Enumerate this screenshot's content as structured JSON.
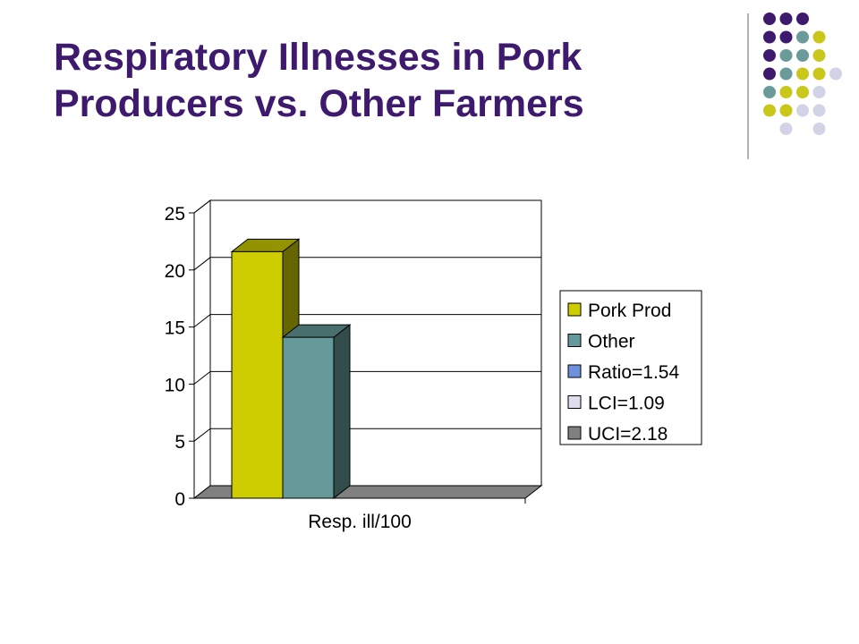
{
  "slide": {
    "title_line1": "Respiratory Illnesses in Pork",
    "title_line2": "Producers vs. Other Farmers"
  },
  "colors": {
    "title": "#3e1a6e",
    "dot_purple": "#3e1a6e",
    "dot_teal": "#6a9a9a",
    "dot_yellow": "#c9c81a",
    "dot_lavender": "#d3d3e8",
    "divider": "#999999"
  },
  "dot_grid": [
    [
      "purple",
      "purple",
      "purple",
      "",
      ""
    ],
    [
      "purple",
      "purple",
      "teal",
      "yellow",
      ""
    ],
    [
      "purple",
      "teal",
      "teal",
      "yellow",
      ""
    ],
    [
      "purple",
      "teal",
      "yellow",
      "yellow",
      "lavender"
    ],
    [
      "teal",
      "yellow",
      "yellow",
      "lavender",
      ""
    ],
    [
      "yellow",
      "yellow",
      "lavender",
      "lavender",
      ""
    ],
    [
      "",
      "lavender",
      "",
      "lavender",
      ""
    ]
  ],
  "chart_data": {
    "type": "bar",
    "style": "3d-clustered-column",
    "categories": [
      "Resp. ill/100"
    ],
    "series": [
      {
        "name": "Pork Prod",
        "values": [
          21.6
        ],
        "color": "#cccc00"
      },
      {
        "name": "Other",
        "values": [
          14.1
        ],
        "color": "#669999"
      },
      {
        "name": "Ratio=1.54",
        "values": [
          0
        ],
        "color": "#6f8fdf"
      },
      {
        "name": "LCI=1.09",
        "values": [
          0
        ],
        "color": "#ddddee"
      },
      {
        "name": "UCI=2.18",
        "values": [
          0
        ],
        "color": "#808080"
      }
    ],
    "xlabel": "Resp. ill/100",
    "ylabel": "",
    "ylim": [
      0,
      25
    ],
    "yticks": [
      "0",
      "5",
      "10",
      "15",
      "20",
      "25"
    ],
    "grid": true,
    "legend_position": "right"
  }
}
